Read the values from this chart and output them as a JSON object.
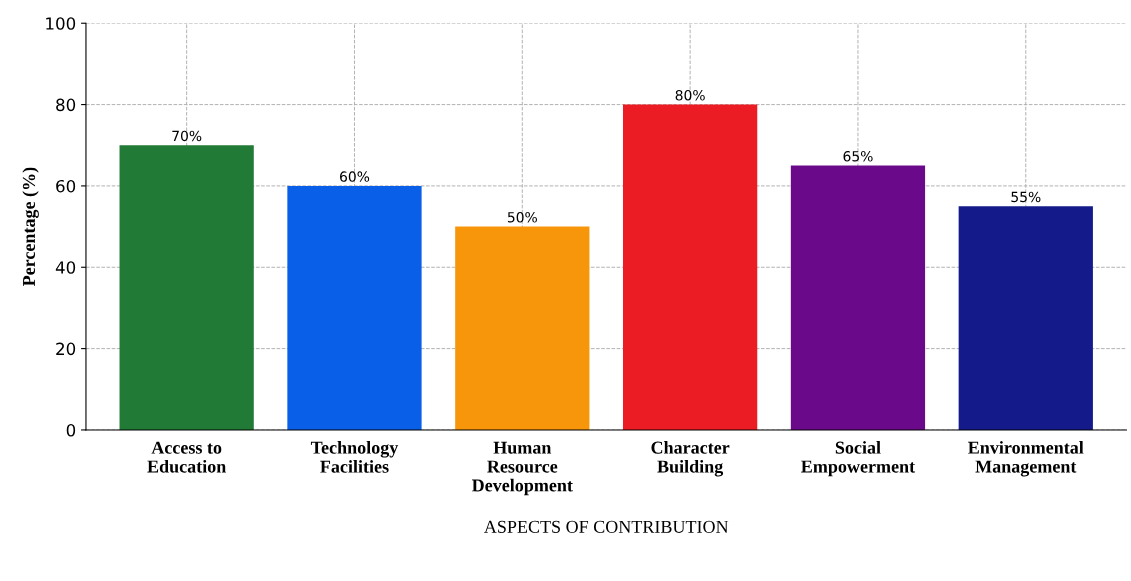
{
  "chart_data": {
    "type": "bar",
    "categories": [
      "Access to\nEducation",
      "Technology\nFacilities",
      "Human\nResource\nDevelopment",
      "Character\nBuilding",
      "Social\nEmpowerment",
      "Environmental\nManagement"
    ],
    "values": [
      70,
      60,
      50,
      80,
      65,
      55
    ],
    "colors": [
      "#217a35",
      "#0a5fe8",
      "#f7960a",
      "#ec1c24",
      "#6a0a8a",
      "#141a8a"
    ],
    "value_labels": [
      "70%",
      "60%",
      "50%",
      "80%",
      "65%",
      "55%"
    ],
    "xlabel": "ASPECTS OF CONTRIBUTION",
    "ylabel": "Percentage (%)",
    "ylim": [
      0,
      100
    ],
    "yticks": [
      0,
      20,
      40,
      60,
      80,
      100
    ],
    "grid": true
  }
}
